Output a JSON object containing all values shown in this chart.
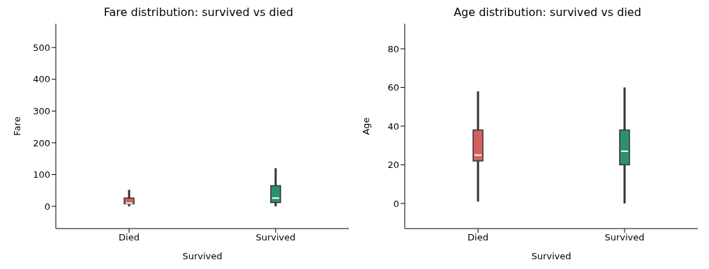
{
  "chart_data": [
    {
      "type": "box",
      "title": "Fare distribution: survived vs died",
      "xlabel": "Survived",
      "ylabel": "Fare",
      "categories": [
        "Died",
        "Survived"
      ],
      "colors": [
        "#d65f5f",
        "#2e8f6e"
      ],
      "boxes": [
        {
          "low": 0,
          "q1": 8,
          "median": 10,
          "q3": 26,
          "high": 52
        },
        {
          "low": 0,
          "q1": 12,
          "median": 26,
          "q3": 65,
          "high": 120
        }
      ],
      "ylim": [
        -70,
        575
      ],
      "yticks": [
        0,
        100,
        200,
        300,
        400,
        500
      ]
    },
    {
      "type": "box",
      "title": "Age distribution: survived vs died",
      "xlabel": "Survived",
      "ylabel": "Age",
      "categories": [
        "Died",
        "Survived"
      ],
      "colors": [
        "#d65f5f",
        "#2e8f6e"
      ],
      "boxes": [
        {
          "low": 1,
          "q1": 22,
          "median": 25,
          "q3": 38,
          "high": 58
        },
        {
          "low": 0,
          "q1": 20,
          "median": 27,
          "q3": 38,
          "high": 60
        }
      ],
      "ylim": [
        -13,
        93
      ],
      "yticks": [
        0,
        20,
        40,
        60,
        80
      ]
    }
  ]
}
